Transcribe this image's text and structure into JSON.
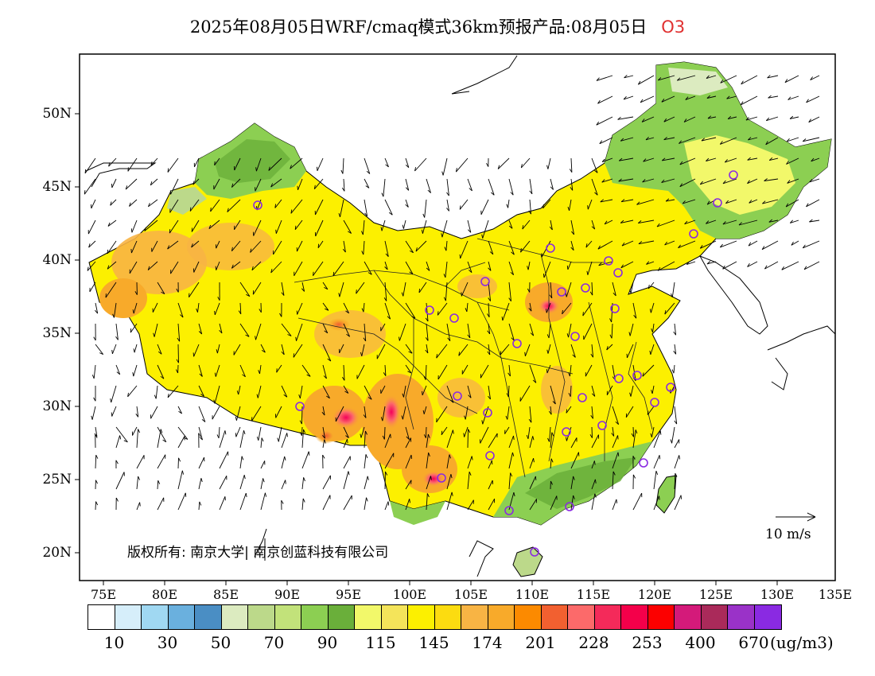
{
  "title": {
    "text": "2025年08月05日WRF/cmaq模式36km预报产品:08月05日",
    "variable": "O3"
  },
  "axes": {
    "lat_labels": [
      "50N",
      "45N",
      "40N",
      "35N",
      "30N",
      "25N",
      "20N"
    ],
    "lon_labels": [
      "75E",
      "80E",
      "85E",
      "90E",
      "95E",
      "100E",
      "105E",
      "110E",
      "115E",
      "120E",
      "125E",
      "130E",
      "135E"
    ]
  },
  "copyright": "版权所有: 南京大学| 南京创蓝科技有限公司",
  "wind_reference": "10 m/s",
  "colorbar": {
    "colors": [
      "#ffffff",
      "#d6eefa",
      "#a0d8f2",
      "#6ab0de",
      "#4a8ec4",
      "#dcebc0",
      "#bcd98a",
      "#c2e27a",
      "#8ccf52",
      "#6aaf3a",
      "#f2f86a",
      "#f4e45a",
      "#fcf000",
      "#fcdc10",
      "#f8b444",
      "#f8aa2a",
      "#fc8a00",
      "#f26030",
      "#fc6a6a",
      "#f42a5a",
      "#f4004a",
      "#fc0000",
      "#d41a7a",
      "#aa2a5a",
      "#9a32c8",
      "#8a2ae2"
    ],
    "labels": [
      "10",
      "30",
      "50",
      "70",
      "90",
      "115",
      "145",
      "174",
      "201",
      "228",
      "253",
      "400",
      "670"
    ],
    "unit": "(ug/m3)"
  }
}
